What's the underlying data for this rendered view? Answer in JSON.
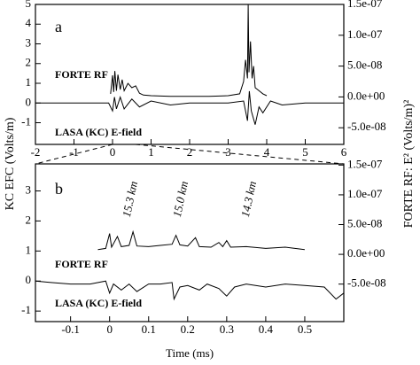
{
  "chart_data": [
    {
      "type": "line",
      "panel_label": "a",
      "ylabel": "KC EFC (Volts/m)",
      "y2label": "FORTE RF: E² (Volts/m)²",
      "xlim": [
        -2,
        6
      ],
      "xticks": [
        -2,
        -1,
        0,
        1,
        2,
        3,
        4,
        5,
        6
      ],
      "ylim": [
        -2.1,
        5
      ],
      "yticks": [
        -1,
        0,
        1,
        2,
        3,
        4,
        5
      ],
      "y2lim": [
        -7.7e-08,
        1.5e-07
      ],
      "y2ticks": [
        {
          "value": -5e-08,
          "label": "-5.0e-08"
        },
        {
          "value": 0,
          "label": "0.0e+00"
        },
        {
          "value": 5e-08,
          "label": "5.0e-08"
        },
        {
          "value": 1e-07,
          "label": "1.0e-07"
        },
        {
          "value": 1.5e-07,
          "label": "1.5e-07"
        }
      ],
      "series": [
        {
          "name": "FORTE RF",
          "color": "#000000",
          "axis": "y2",
          "x": [
            -0.05,
            0,
            0.03,
            0.06,
            0.1,
            0.14,
            0.2,
            0.25,
            0.3,
            0.4,
            0.5,
            0.6,
            0.7,
            0.8,
            1.0,
            1.5,
            2.0,
            2.5,
            3.0,
            3.3,
            3.4,
            3.45,
            3.5,
            3.52,
            3.54,
            3.58,
            3.62,
            3.66,
            3.7,
            3.8,
            3.9,
            4.0
          ],
          "values": [
            5e-09,
            3.5e-08,
            8e-09,
            4.2e-08,
            1e-08,
            3.6e-08,
            1.2e-08,
            2.8e-08,
            1e-08,
            2.2e-08,
            1.5e-08,
            1.8e-08,
            6e-09,
            3e-09,
            2e-09,
            1e-09,
            1e-09,
            1e-09,
            2e-09,
            5e-09,
            2.5e-08,
            6e-08,
            3e-08,
            1.5e-07,
            4e-08,
            9e-08,
            3e-08,
            5e-08,
            1.5e-08,
            1e-08,
            5e-09,
            2e-09
          ]
        },
        {
          "name": "LASA (KC) E-field",
          "color": "#000000",
          "x": [
            -2,
            -0.1,
            0,
            0.05,
            0.1,
            0.2,
            0.3,
            0.5,
            0.7,
            1,
            1.5,
            2,
            3,
            3.4,
            3.5,
            3.55,
            3.6,
            3.7,
            3.8,
            3.9,
            4.1,
            4.4,
            5,
            6
          ],
          "values": [
            0,
            0,
            -0.4,
            0.3,
            -0.3,
            0.3,
            -0.3,
            0.2,
            -0.2,
            0.1,
            -0.1,
            0,
            0,
            0.1,
            -0.9,
            0.6,
            -0.4,
            -1.1,
            -0.2,
            -0.5,
            0.1,
            -0.1,
            0,
            0
          ]
        }
      ]
    },
    {
      "type": "line",
      "panel_label": "b",
      "xlabel": "Time (ms)",
      "distances": [
        "15.3 km",
        "15.0 km",
        "14.3 km"
      ],
      "xlim": [
        -0.19,
        0.6
      ],
      "xticks": [
        -0.1,
        0,
        0.1,
        0.2,
        0.3,
        0.4,
        0.5
      ],
      "ylim": [
        -1.35,
        3.9
      ],
      "yticks": [
        -1,
        0,
        1,
        2,
        3
      ],
      "y2lim": [
        -1.13e-07,
        1.52e-07
      ],
      "y2ticks": [
        {
          "value": -5e-08,
          "label": "-5.0e-08"
        },
        {
          "value": 0,
          "label": "0.0e+00"
        },
        {
          "value": 5e-08,
          "label": "5.0e-08"
        },
        {
          "value": 1e-07,
          "label": "1.0e-07"
        },
        {
          "value": 1.5e-07,
          "label": "1.5e-07"
        }
      ],
      "series": [
        {
          "name": "FORTE RF",
          "color": "#000000",
          "axis": "y2",
          "x": [
            -0.03,
            -0.01,
            0,
            0.005,
            0.02,
            0.03,
            0.05,
            0.06,
            0.07,
            0.1,
            0.13,
            0.16,
            0.17,
            0.18,
            0.2,
            0.22,
            0.23,
            0.26,
            0.28,
            0.29,
            0.3,
            0.31,
            0.35,
            0.4,
            0.45,
            0.5
          ],
          "values": [
            8e-09,
            1e-08,
            3.5e-08,
            1.2e-08,
            3e-08,
            1.3e-08,
            1.5e-08,
            3.8e-08,
            1.4e-08,
            1.3e-08,
            1.5e-08,
            1.7e-08,
            3.2e-08,
            1.6e-08,
            1.4e-08,
            2.8e-08,
            1.3e-08,
            1.2e-08,
            2e-08,
            1.3e-08,
            2.3e-08,
            1.2e-08,
            1.3e-08,
            1e-08,
            1.2e-08,
            8e-09
          ]
        },
        {
          "name": "LASA (KC) E-field",
          "color": "#000000",
          "x": [
            -0.19,
            -0.15,
            -0.1,
            -0.05,
            -0.01,
            0,
            0.01,
            0.03,
            0.05,
            0.07,
            0.1,
            0.13,
            0.16,
            0.165,
            0.18,
            0.2,
            0.23,
            0.25,
            0.28,
            0.3,
            0.32,
            0.35,
            0.4,
            0.45,
            0.5,
            0.55,
            0.58,
            0.6
          ],
          "values": [
            0,
            -0.05,
            -0.1,
            -0.1,
            0,
            -0.4,
            -0.1,
            -0.3,
            -0.1,
            -0.35,
            -0.1,
            -0.1,
            -0.05,
            -0.6,
            -0.2,
            -0.15,
            -0.3,
            -0.1,
            -0.25,
            -0.5,
            -0.2,
            -0.1,
            -0.2,
            -0.1,
            -0.15,
            -0.2,
            -0.6,
            -0.4
          ]
        }
      ]
    }
  ]
}
